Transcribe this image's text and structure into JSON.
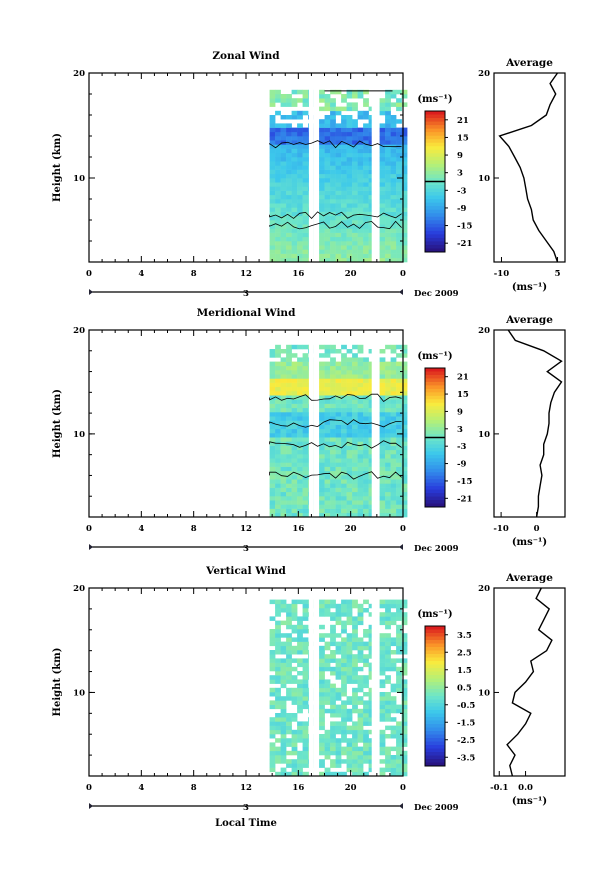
{
  "chart_data": [
    {
      "type": "heatmap",
      "title": "Zonal Wind",
      "ylabel": "Height (km)",
      "xlabel": "",
      "x_ticks": [
        "0",
        "4",
        "8",
        "12",
        "16",
        "20",
        "0"
      ],
      "y_ticks": [
        "10",
        "20"
      ],
      "ylim": [
        2,
        20
      ],
      "xlim": [
        0,
        24
      ],
      "date_bar": {
        "day_label": "3",
        "month_label": "Dec 2009"
      },
      "colorbar": {
        "unit": "(ms⁻¹)",
        "ticks": [
          "21",
          "15",
          "9",
          "3",
          "-3",
          "-9",
          "-15",
          "-21"
        ],
        "range": [
          -24,
          24
        ]
      },
      "data_start_hour": 13.8,
      "data_description_field": {
        "mean_value": -4,
        "top_km": 18
      },
      "average_profile": {
        "title": "Average",
        "xlabel": "(ms⁻¹)",
        "x_ticks": [
          "-10",
          "5"
        ],
        "xlim": [
          -12,
          7
        ],
        "y_ticks": [
          "10",
          "20"
        ],
        "height_km": [
          2,
          3,
          4,
          5,
          6,
          7,
          8,
          9,
          10,
          11,
          12,
          13,
          14,
          15,
          16,
          17,
          18,
          19,
          20
        ],
        "values": [
          5,
          4,
          2,
          0,
          -1.5,
          -2,
          -3,
          -3.5,
          -4,
          -5,
          -6.5,
          -8,
          -10.5,
          -2,
          2,
          3,
          4.5,
          3,
          5
        ]
      }
    },
    {
      "type": "heatmap",
      "title": "Meridional Wind",
      "ylabel": "Height (km)",
      "xlabel": "",
      "x_ticks": [
        "0",
        "4",
        "8",
        "12",
        "16",
        "20",
        "0"
      ],
      "y_ticks": [
        "10",
        "20"
      ],
      "ylim": [
        2,
        20
      ],
      "xlim": [
        0,
        24
      ],
      "date_bar": {
        "day_label": "3",
        "month_label": "Dec 2009"
      },
      "colorbar": {
        "unit": "(ms⁻¹)",
        "ticks": [
          "21",
          "15",
          "9",
          "3",
          "-3",
          "-9",
          "-15",
          "-21"
        ],
        "range": [
          -24,
          24
        ]
      },
      "data_start_hour": 13.8,
      "average_profile": {
        "title": "Average",
        "xlabel": "(ms⁻¹)",
        "x_ticks": [
          "-10",
          "0"
        ],
        "xlim": [
          -12,
          8
        ],
        "y_ticks": [
          "10",
          "20"
        ],
        "height_km": [
          2,
          3,
          4,
          5,
          6,
          7,
          8,
          9,
          10,
          11,
          12,
          13,
          14,
          15,
          16,
          17,
          18,
          19,
          20
        ],
        "values": [
          0,
          0.5,
          0.5,
          1,
          1.5,
          1,
          2,
          2,
          3,
          3.5,
          3.5,
          4,
          5,
          7,
          3,
          7,
          2,
          -6,
          -8
        ]
      }
    },
    {
      "type": "heatmap",
      "title": "Vertical Wind",
      "ylabel": "Height (km)",
      "xlabel": "Local Time",
      "x_ticks": [
        "0",
        "4",
        "8",
        "12",
        "16",
        "20",
        "0"
      ],
      "y_ticks": [
        "10",
        "20"
      ],
      "ylim": [
        2,
        20
      ],
      "xlim": [
        0,
        24
      ],
      "date_bar": {
        "day_label": "3",
        "month_label": "Dec 2009"
      },
      "colorbar": {
        "unit": "(ms⁻¹)",
        "ticks": [
          "3.5",
          "2.5",
          "1.5",
          "0.5",
          "-0.5",
          "-1.5",
          "-2.5",
          "-3.5"
        ],
        "range": [
          -4,
          4
        ]
      },
      "data_start_hour": 13.8,
      "average_profile": {
        "title": "Average",
        "xlabel": "(ms⁻¹)",
        "x_ticks": [
          "-0.1",
          "0.0"
        ],
        "xlim": [
          -0.12,
          0.15
        ],
        "y_ticks": [
          "10",
          "20"
        ],
        "height_km": [
          2,
          3,
          4,
          5,
          6,
          7,
          8,
          9,
          10,
          11,
          12,
          13,
          14,
          15,
          16,
          17,
          18,
          19,
          20
        ],
        "values": [
          -0.05,
          -0.06,
          -0.04,
          -0.07,
          -0.03,
          0.0,
          0.02,
          -0.05,
          -0.04,
          0.0,
          0.03,
          0.02,
          0.08,
          0.1,
          0.05,
          0.07,
          0.09,
          0.04,
          0.06
        ]
      }
    }
  ]
}
